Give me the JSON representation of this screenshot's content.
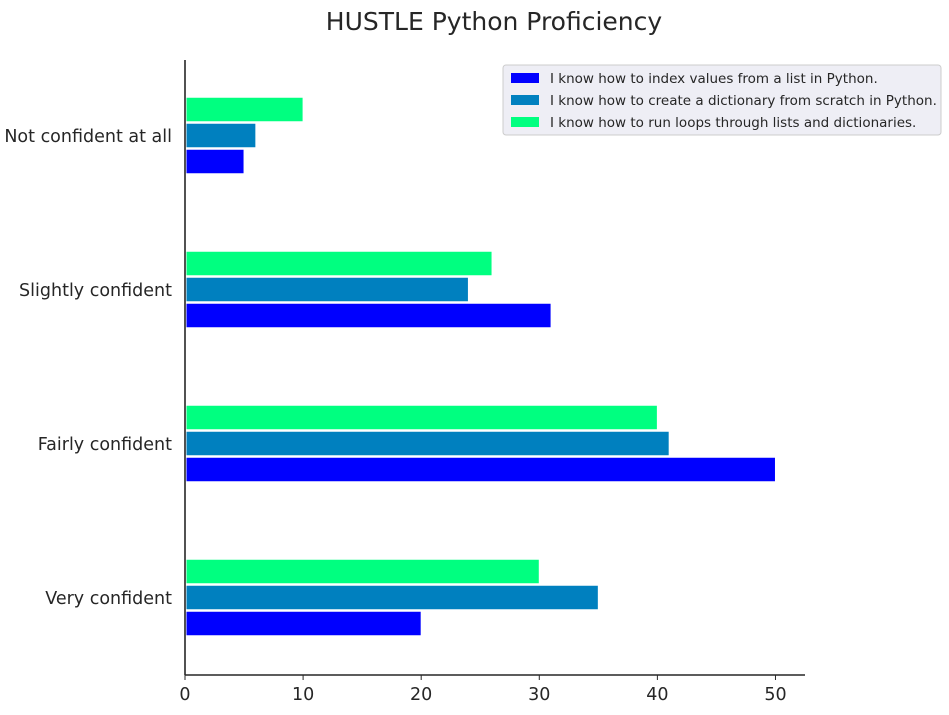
{
  "chart_data": {
    "type": "bar",
    "orientation": "horizontal",
    "title": "HUSTLE Python Proficiency",
    "xlabel": "",
    "ylabel": "",
    "categories": [
      "Very confident",
      "Fairly confident",
      "Slightly confident",
      "Not confident at all"
    ],
    "series": [
      {
        "name": "I know how to index values from a list in Python.",
        "color": "#0000ff",
        "values": [
          20,
          50,
          31,
          5
        ]
      },
      {
        "name": "I know how to create a dictionary from scratch in Python.",
        "color": "#0080bf",
        "values": [
          35,
          41,
          24,
          6
        ]
      },
      {
        "name": "I know how to run loops through lists and dictionaries.",
        "color": "#00ff80",
        "values": [
          30,
          40,
          26,
          10
        ]
      }
    ],
    "xlim": [
      0,
      52.5
    ],
    "xticks": [
      0,
      10,
      20,
      30,
      40,
      50
    ],
    "grid": false,
    "legend_position": "top-right"
  }
}
